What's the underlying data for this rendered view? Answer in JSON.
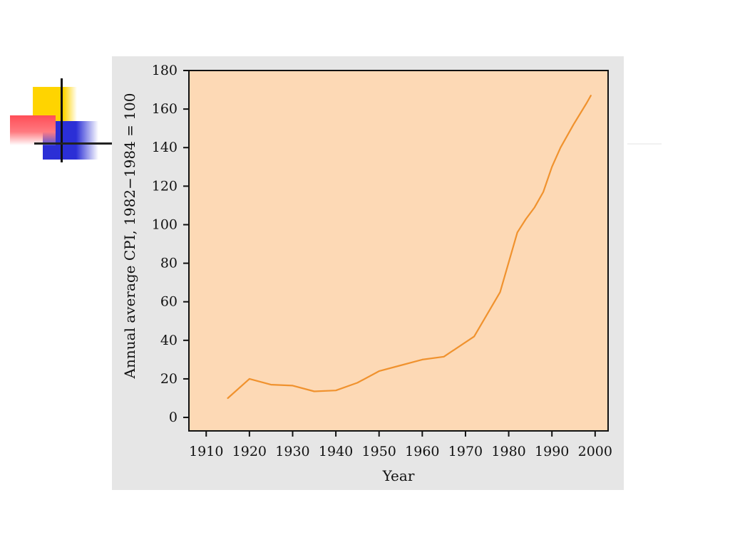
{
  "slide": {
    "logo_icon": "four-square-crosshair-logo"
  },
  "chart_data": {
    "type": "line",
    "title": "",
    "xlabel": "Year",
    "ylabel": "Annual average CPI, 1982−1984 = 100",
    "xlim": [
      1906,
      2003
    ],
    "ylim": [
      -7,
      180
    ],
    "x_ticks": [
      "1910",
      "1920",
      "1930",
      "1940",
      "1950",
      "1960",
      "1970",
      "1980",
      "1990",
      "2000"
    ],
    "y_ticks": [
      "0",
      "20",
      "40",
      "60",
      "80",
      "100",
      "120",
      "140",
      "160",
      "180"
    ],
    "grid": false,
    "line_color": "#f0922e",
    "plot_background": "#fdd9b5",
    "series": [
      {
        "x": [
          1915,
          1920,
          1925,
          1930,
          1935,
          1940,
          1945,
          1950,
          1955,
          1960,
          1965,
          1972,
          1978,
          1982,
          1984,
          1986,
          1988,
          1990,
          1992,
          1995,
          1998,
          1999
        ],
        "values": [
          10,
          20,
          17,
          16.5,
          13.5,
          14,
          18,
          24,
          27,
          30,
          31.5,
          42,
          65,
          96,
          103,
          109,
          117,
          130,
          140,
          152,
          163,
          167
        ]
      }
    ]
  }
}
